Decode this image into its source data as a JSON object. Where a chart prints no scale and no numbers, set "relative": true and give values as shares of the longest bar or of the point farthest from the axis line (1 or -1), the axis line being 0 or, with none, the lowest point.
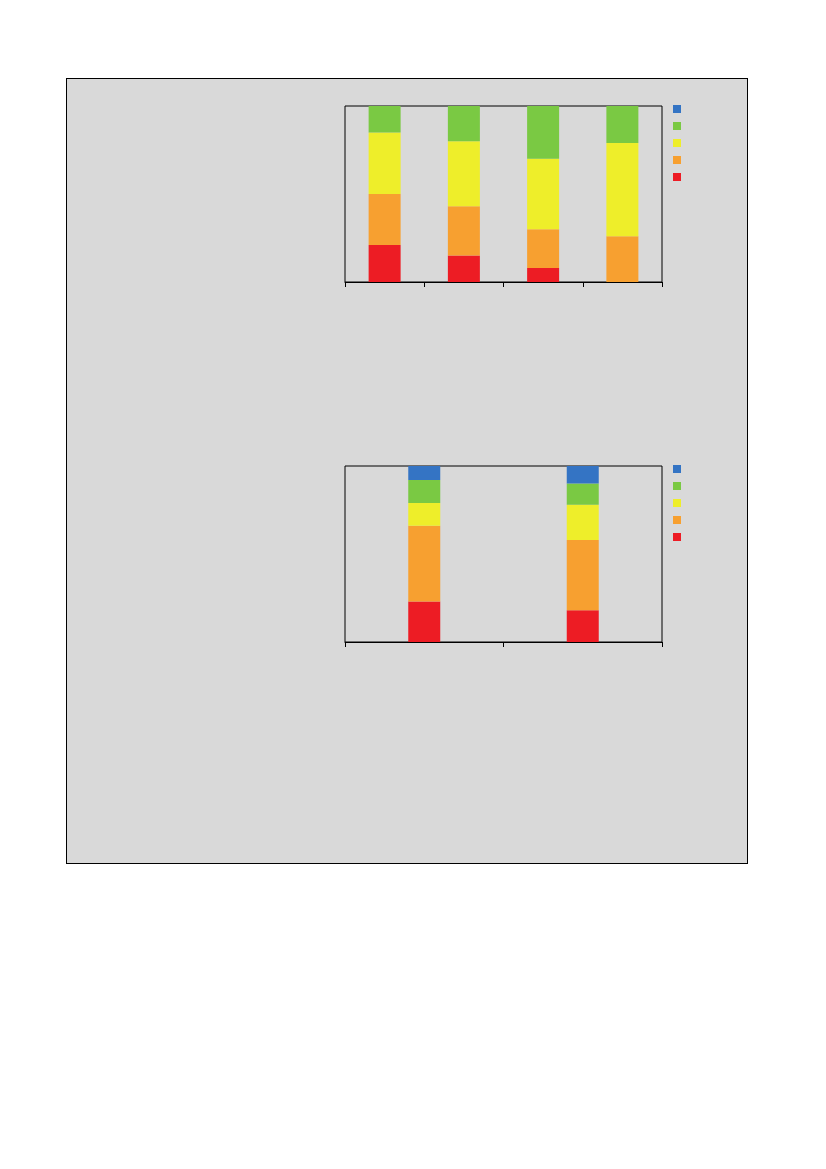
{
  "chart_data": [
    {
      "type": "bar",
      "stacked": true,
      "relative": true,
      "categories": [
        null,
        null,
        null,
        null
      ],
      "series": [
        {
          "color": "#ed1c24",
          "values": [
            0.21,
            0.15,
            0.08,
            0
          ]
        },
        {
          "color": "#f7a030",
          "values": [
            0.29,
            0.28,
            0.22,
            0.26
          ]
        },
        {
          "color": "#eeee2a",
          "values": [
            0.35,
            0.37,
            0.4,
            0.53
          ]
        },
        {
          "color": "#7ac943",
          "values": [
            0.15,
            0.2,
            0.3,
            0.21
          ]
        },
        {
          "color": "#3474c4",
          "values": [
            0,
            0,
            0,
            0
          ]
        }
      ]
    },
    {
      "type": "bar",
      "stacked": true,
      "relative": true,
      "categories": [
        null,
        null
      ],
      "series": [
        {
          "color": "#ed1c24",
          "values": [
            0.23,
            0.18
          ]
        },
        {
          "color": "#f7a030",
          "values": [
            0.43,
            0.4
          ]
        },
        {
          "color": "#eeee2a",
          "values": [
            0.13,
            0.2
          ]
        },
        {
          "color": "#7ac943",
          "values": [
            0.13,
            0.12
          ]
        },
        {
          "color": "#3474c4",
          "values": [
            0.08,
            0.1
          ]
        }
      ]
    }
  ]
}
